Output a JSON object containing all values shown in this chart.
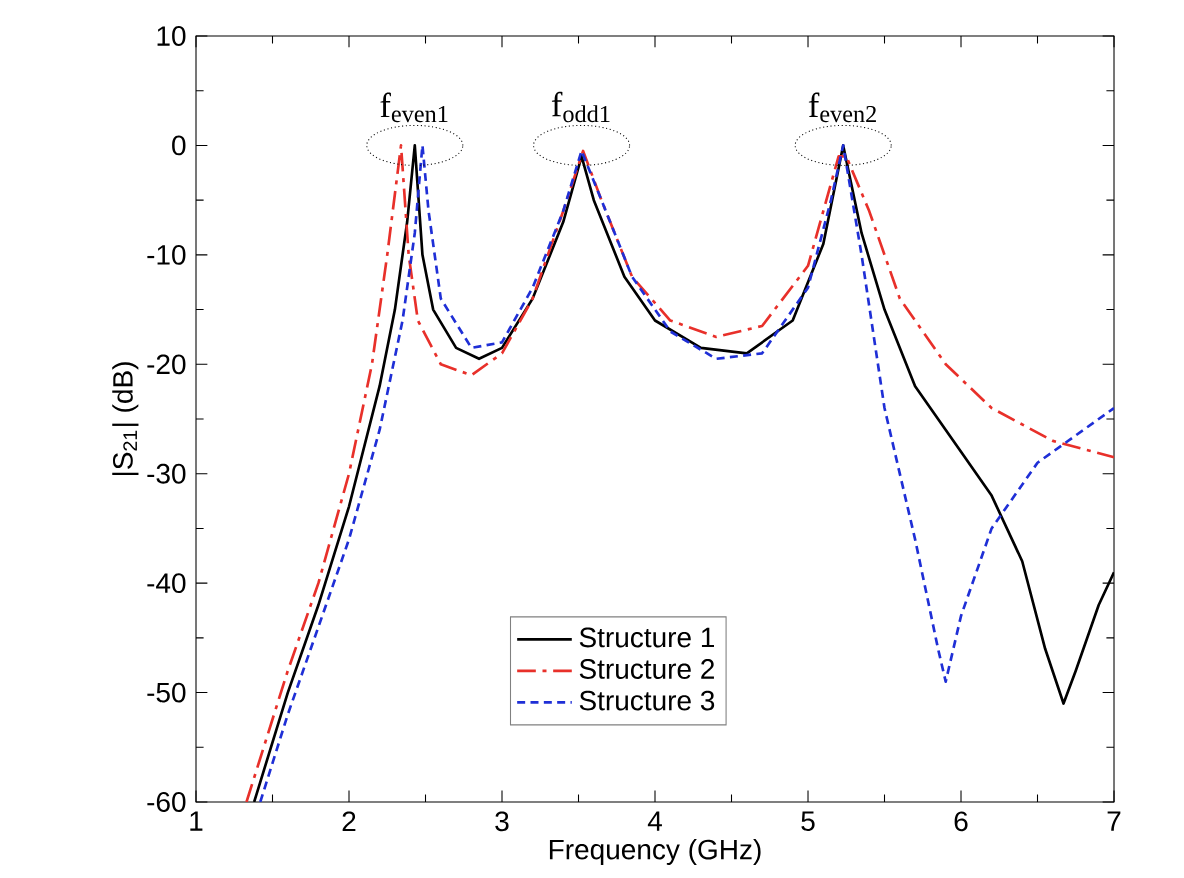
{
  "chart_data": {
    "type": "line",
    "xlabel": "Frequency (GHz)",
    "ylabel": "|S$_{21}$| (dB)",
    "xlim": [
      1,
      7
    ],
    "xticks": [
      1,
      2,
      3,
      4,
      5,
      6,
      7
    ],
    "ylim": [
      -60,
      10
    ],
    "yticks": [
      -60,
      -50,
      -40,
      -30,
      -20,
      -10,
      0,
      10
    ],
    "grid": false,
    "legend": "bottom",
    "marker": "none",
    "annotations": [
      {
        "text": "f$_{even1}$",
        "x": 2.43,
        "y": 0
      },
      {
        "text": "f$_{odd1}$",
        "x": 3.52,
        "y": 0
      },
      {
        "text": "f$_{even2}$",
        "x": 5.23,
        "y": 0
      }
    ],
    "series": [
      {
        "name": "Structure 1",
        "color": "#000000",
        "line_style": "solid",
        "x": [
          1.38,
          1.6,
          1.8,
          2.0,
          2.2,
          2.3,
          2.38,
          2.43,
          2.48,
          2.55,
          2.7,
          2.85,
          3.0,
          3.2,
          3.4,
          3.52,
          3.6,
          3.8,
          4.0,
          4.3,
          4.6,
          4.9,
          5.1,
          5.23,
          5.35,
          5.5,
          5.7,
          6.0,
          6.2,
          6.4,
          6.55,
          6.67,
          6.75,
          6.9,
          7.0
        ],
        "values": [
          -60,
          -50,
          -42,
          -33,
          -22,
          -15,
          -7,
          0,
          -10,
          -15,
          -18.5,
          -19.5,
          -18.5,
          -14,
          -7,
          -1,
          -5,
          -12,
          -16,
          -18.5,
          -19,
          -16,
          -9,
          0,
          -8,
          -15,
          -22,
          -28,
          -32,
          -38,
          -46,
          -51,
          -48,
          -42,
          -39
        ]
      },
      {
        "name": "Structure 2",
        "color": "#e8302a",
        "line_style": "dashdot",
        "x": [
          1.33,
          1.6,
          1.8,
          2.0,
          2.15,
          2.25,
          2.34,
          2.39,
          2.45,
          2.6,
          2.8,
          3.0,
          3.2,
          3.4,
          3.53,
          3.65,
          3.85,
          4.1,
          4.4,
          4.7,
          5.0,
          5.2,
          5.25,
          5.4,
          5.6,
          5.9,
          6.2,
          6.6,
          7.0
        ],
        "values": [
          -60,
          -48,
          -40,
          -30,
          -20,
          -10,
          0,
          -10,
          -16,
          -20,
          -21,
          -19,
          -14,
          -6,
          -0.5,
          -5,
          -12,
          -16,
          -17.5,
          -16.5,
          -11,
          -1,
          -1,
          -6,
          -14,
          -20,
          -24,
          -27,
          -28.5
        ]
      },
      {
        "name": "Structure 3",
        "color": "#1f2fd6",
        "line_style": "dashed",
        "x": [
          1.42,
          1.6,
          1.8,
          2.0,
          2.2,
          2.35,
          2.43,
          2.48,
          2.52,
          2.6,
          2.8,
          3.0,
          3.2,
          3.4,
          3.52,
          3.65,
          3.85,
          4.1,
          4.4,
          4.7,
          5.0,
          5.15,
          5.23,
          5.35,
          5.5,
          5.7,
          5.85,
          5.9,
          6.0,
          6.2,
          6.5,
          6.8,
          7.0
        ],
        "values": [
          -60,
          -52,
          -44,
          -36,
          -26,
          -16,
          -8,
          0,
          -6,
          -14,
          -18.5,
          -18,
          -13,
          -6,
          -0.5,
          -5,
          -12,
          -17,
          -19.5,
          -19,
          -13,
          -5,
          0,
          -10,
          -24,
          -36,
          -46,
          -49,
          -43,
          -35,
          -29,
          -26,
          -24
        ]
      }
    ]
  }
}
